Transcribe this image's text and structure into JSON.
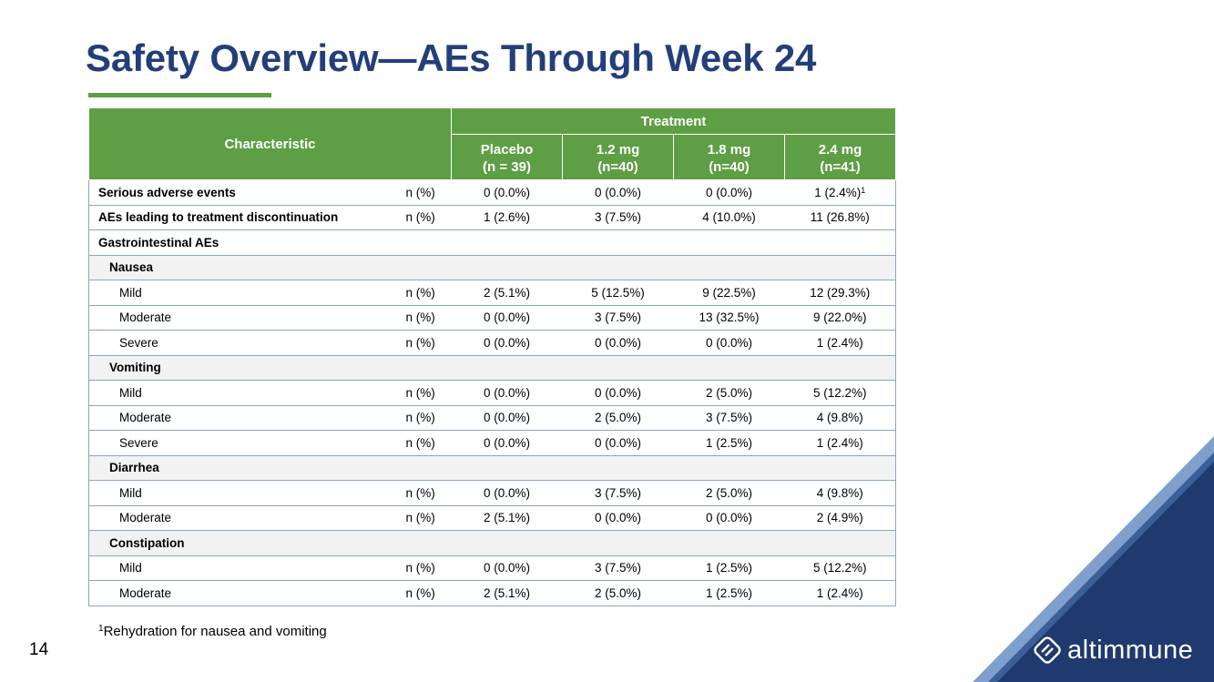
{
  "slide": {
    "title": "Safety Overview—AEs Through Week 24",
    "page_number": "14",
    "footnote_marker": "1",
    "footnote_text": "Rehydration for nausea and vomiting"
  },
  "table": {
    "characteristic_header": "Characteristic",
    "treatment_header": "Treatment",
    "groups": [
      {
        "name": "Placebo",
        "n": "(n = 39)"
      },
      {
        "name": "1.2 mg",
        "n": "(n=40)"
      },
      {
        "name": "1.8 mg",
        "n": "(n=40)"
      },
      {
        "name": "2.4 mg",
        "n": "(n=41)"
      }
    ],
    "rows": [
      {
        "label": "Serious adverse events",
        "unit": "n (%)",
        "values": [
          "0 (0.0%)",
          "0 (0.0%)",
          "0 (0.0%)",
          "1 (2.4%)"
        ],
        "last_sup": "1"
      },
      {
        "label": "AEs leading to treatment discontinuation",
        "unit": "n (%)",
        "values": [
          "1 (2.6%)",
          "3 (7.5%)",
          "4 (10.0%)",
          "11 (26.8%)"
        ]
      },
      {
        "label": "Gastrointestinal AEs"
      },
      {
        "label": "Nausea"
      },
      {
        "label": "Mild",
        "unit": "n (%)",
        "values": [
          "2 (5.1%)",
          "5 (12.5%)",
          "9 (22.5%)",
          "12 (29.3%)"
        ]
      },
      {
        "label": "Moderate",
        "unit": "n (%)",
        "values": [
          "0 (0.0%)",
          "3 (7.5%)",
          "13 (32.5%)",
          "9 (22.0%)"
        ]
      },
      {
        "label": "Severe",
        "unit": "n (%)",
        "values": [
          "0 (0.0%)",
          "0 (0.0%)",
          "0 (0.0%)",
          "1 (2.4%)"
        ]
      },
      {
        "label": "Vomiting"
      },
      {
        "label": "Mild",
        "unit": "n (%)",
        "values": [
          "0 (0.0%)",
          "0 (0.0%)",
          "2 (5.0%)",
          "5 (12.2%)"
        ]
      },
      {
        "label": "Moderate",
        "unit": "n (%)",
        "values": [
          "0 (0.0%)",
          "2 (5.0%)",
          "3 (7.5%)",
          "4 (9.8%)"
        ]
      },
      {
        "label": "Severe",
        "unit": "n (%)",
        "values": [
          "0 (0.0%)",
          "0 (0.0%)",
          "1 (2.5%)",
          "1 (2.4%)"
        ]
      },
      {
        "label": "Diarrhea"
      },
      {
        "label": "Mild",
        "unit": "n (%)",
        "values": [
          "0 (0.0%)",
          "3 (7.5%)",
          "2 (5.0%)",
          "4 (9.8%)"
        ]
      },
      {
        "label": "Moderate",
        "unit": "n (%)",
        "values": [
          "2 (5.1%)",
          "0 (0.0%)",
          "0 (0.0%)",
          "2 (4.9%)"
        ]
      },
      {
        "label": "Constipation"
      },
      {
        "label": "Mild",
        "unit": "n (%)",
        "values": [
          "0 (0.0%)",
          "3 (7.5%)",
          "1 (2.5%)",
          "5 (12.2%)"
        ]
      },
      {
        "label": "Moderate",
        "unit": "n (%)",
        "values": [
          "2 (5.1%)",
          "2 (5.0%)",
          "1 (2.5%)",
          "1 (2.4%)"
        ]
      }
    ]
  },
  "brand": {
    "logo_text": "altimmune",
    "logo_icon": "altimmune-diamond-logo-icon",
    "colors": {
      "title_navy": "#233f7a",
      "accent_green": "#5e9e45",
      "corner_dark_navy": "#1f3a6e",
      "corner_mid_blue": "#3d5f99",
      "corner_light_blue": "#7fa0cc"
    }
  }
}
